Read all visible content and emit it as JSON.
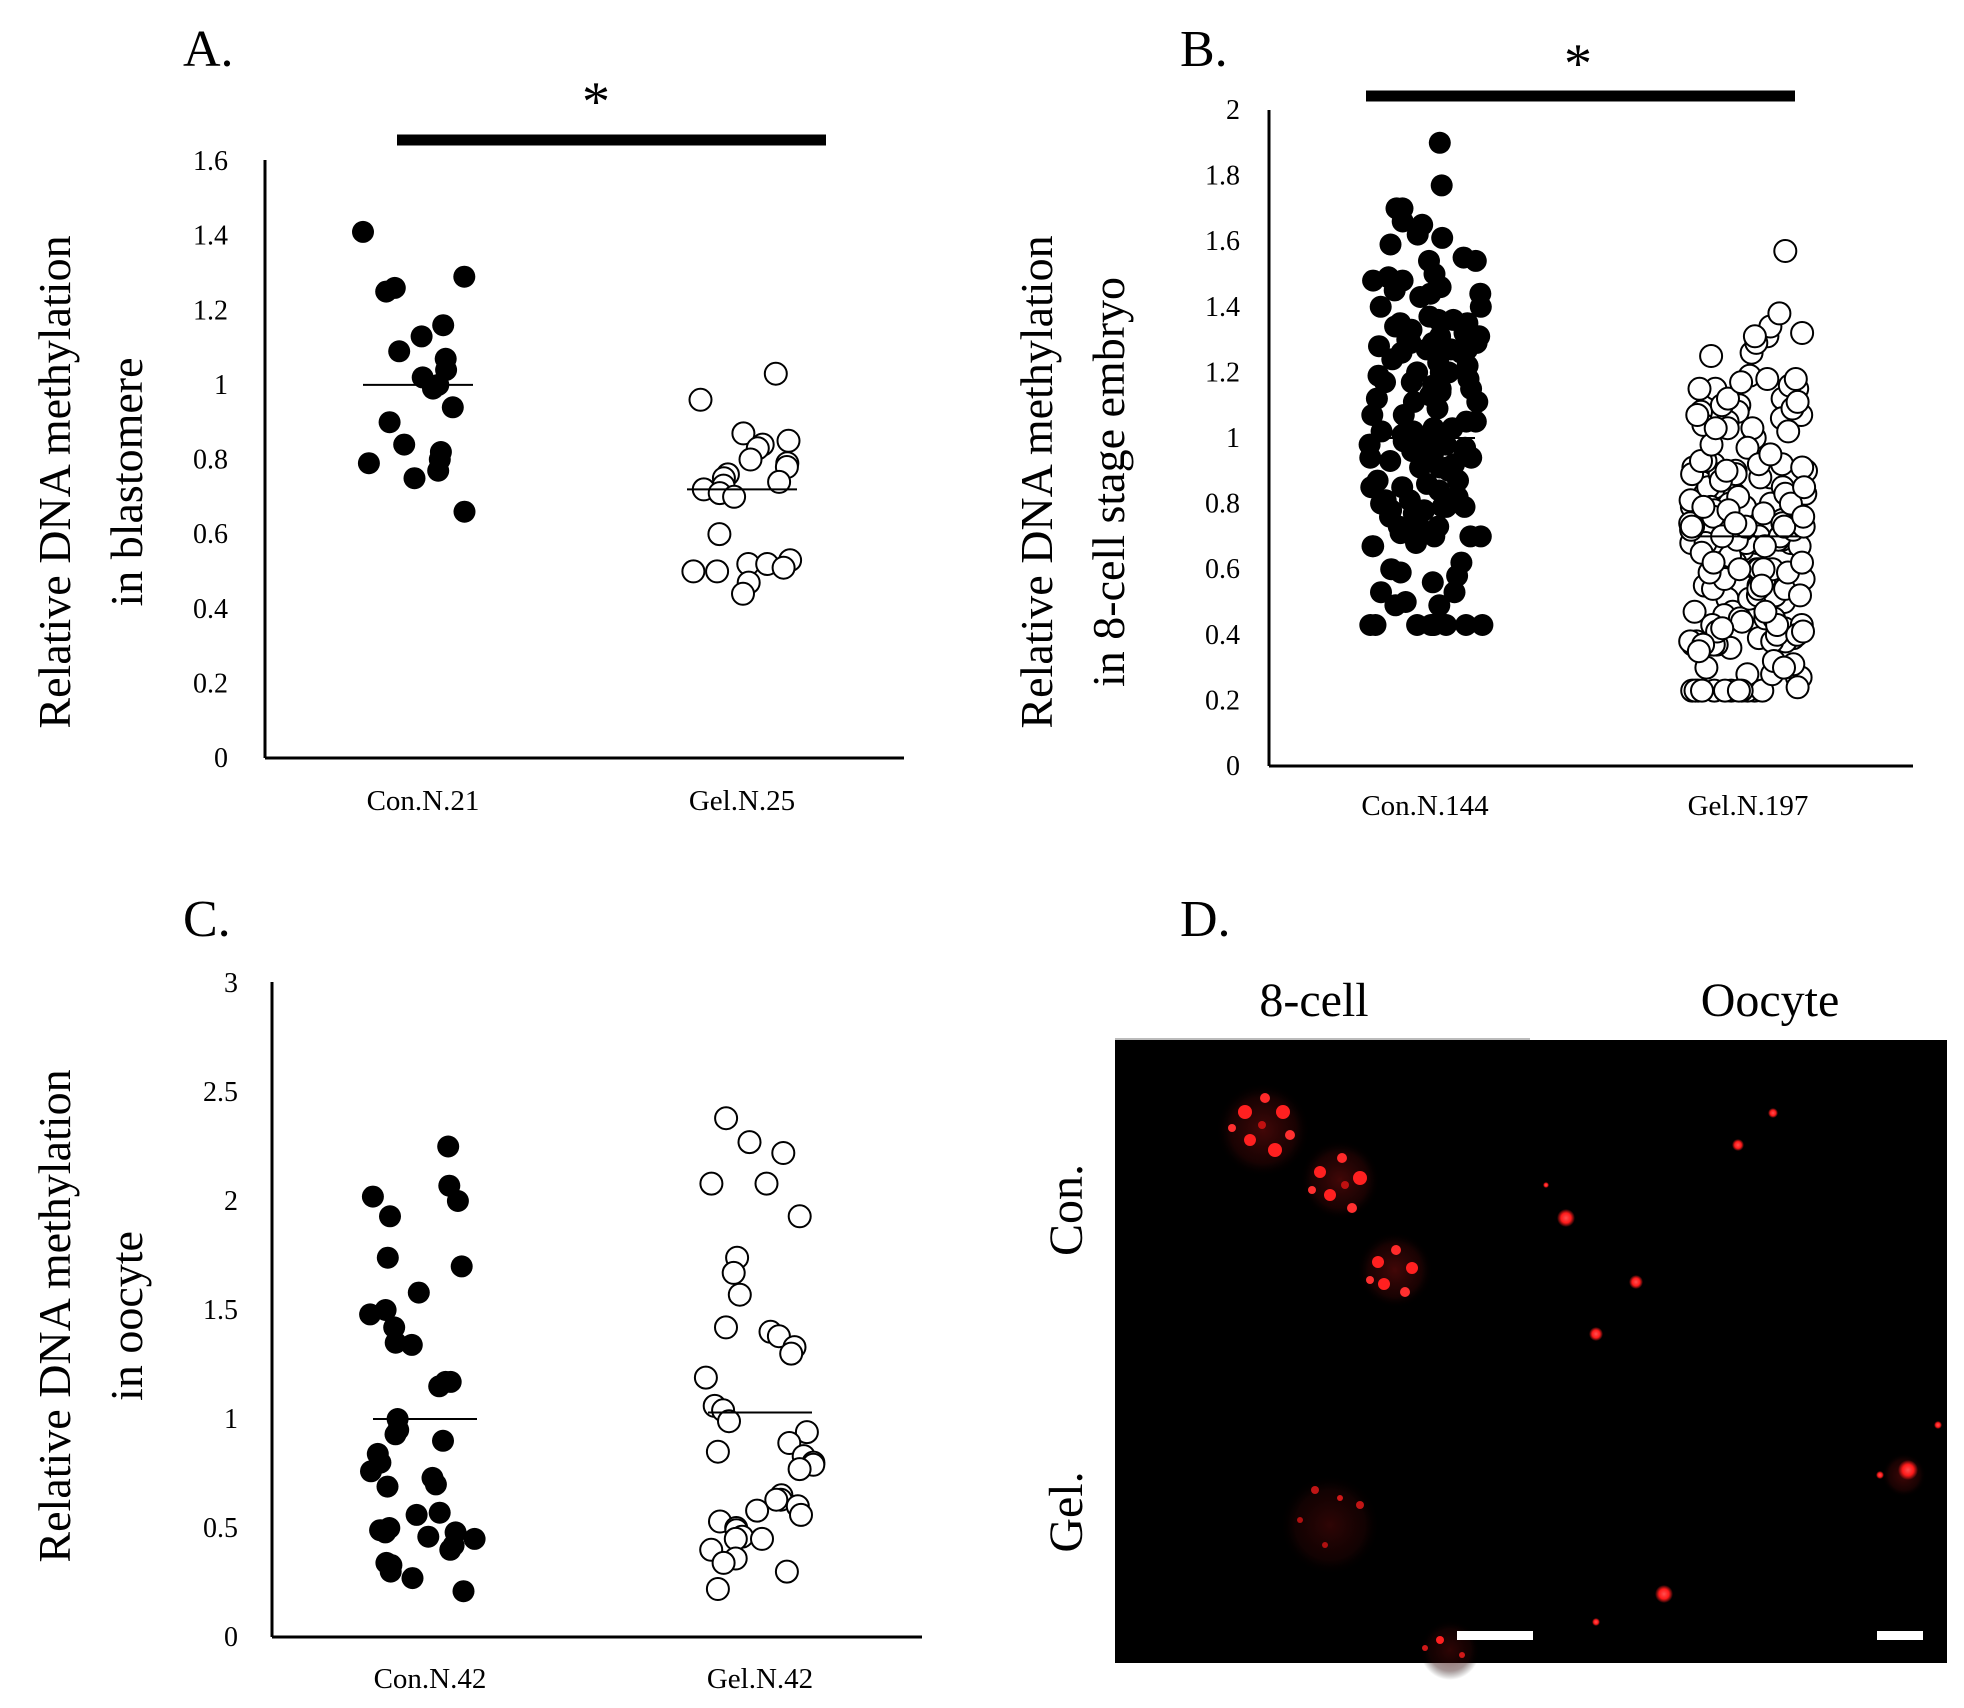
{
  "chart_data": [
    {
      "type": "scatter",
      "panel_label": "A.",
      "ylabel_line1": "Relative DNA methylation",
      "ylabel_line2": "in blastomere",
      "ylim": [
        0,
        1.6
      ],
      "yticks": [
        "0",
        "0.2",
        "0.4",
        "0.6",
        "0.8",
        "1",
        "1.2",
        "1.4",
        "1.6"
      ],
      "categories": [
        "Con.N.21",
        "Gel.N.25"
      ],
      "significance": "*",
      "series": [
        {
          "name": "Con.",
          "filled": true,
          "mean": 1.0,
          "n": 21,
          "values": [
            1.41,
            1.29,
            1.26,
            1.25,
            1.16,
            1.13,
            1.09,
            1.07,
            1.04,
            1.02,
            1.0,
            0.99,
            0.94,
            0.9,
            0.84,
            0.82,
            0.8,
            0.79,
            0.77,
            0.75,
            0.66
          ]
        },
        {
          "name": "Gel.",
          "filled": false,
          "mean": 0.72,
          "n": 25,
          "values": [
            1.03,
            0.96,
            0.87,
            0.85,
            0.84,
            0.83,
            0.8,
            0.79,
            0.78,
            0.76,
            0.75,
            0.74,
            0.73,
            0.72,
            0.71,
            0.7,
            0.6,
            0.53,
            0.52,
            0.52,
            0.51,
            0.5,
            0.5,
            0.47,
            0.44
          ]
        }
      ]
    },
    {
      "type": "scatter",
      "panel_label": "B.",
      "ylabel_line1": "Relative DNA methylation",
      "ylabel_line2": "in 8-cell stage embryo",
      "ylim": [
        0,
        2
      ],
      "yticks": [
        "0",
        "0.2",
        "0.4",
        "0.6",
        "0.8",
        "1",
        "1.2",
        "1.4",
        "1.6",
        "1.8",
        "2"
      ],
      "categories": [
        "Con.N.144",
        "Gel.N.197"
      ],
      "significance": "*",
      "series": [
        {
          "name": "Con.",
          "filled": true,
          "mean": 1.0,
          "n": 144,
          "range": [
            0.43,
            1.9
          ]
        },
        {
          "name": "Gel.",
          "filled": false,
          "mean": 0.7,
          "n": 197,
          "range": [
            0.23,
            1.57
          ]
        }
      ]
    },
    {
      "type": "scatter",
      "panel_label": "C.",
      "ylabel_line1": "Relative DNA methylation",
      "ylabel_line2": "in oocyte",
      "ylim": [
        0,
        3
      ],
      "yticks": [
        "0",
        "0.5",
        "1",
        "1.5",
        "2",
        "2.5",
        "3"
      ],
      "categories": [
        "Con.N.42",
        "Gel.N.42"
      ],
      "series": [
        {
          "name": "Con.",
          "filled": true,
          "mean": 1.0,
          "n": 42,
          "values": [
            2.25,
            2.07,
            2.02,
            2.0,
            1.93,
            1.74,
            1.7,
            1.58,
            1.5,
            1.48,
            1.42,
            1.35,
            1.34,
            1.17,
            1.17,
            1.15,
            1.0,
            0.95,
            0.93,
            0.9,
            0.84,
            0.8,
            0.76,
            0.73,
            0.7,
            0.69,
            0.57,
            0.56,
            0.5,
            0.49,
            0.48,
            0.48,
            0.46,
            0.45,
            0.42,
            0.4,
            0.34,
            0.33,
            0.32,
            0.3,
            0.27,
            0.21
          ]
        },
        {
          "name": "Gel.",
          "filled": false,
          "mean": 1.03,
          "n": 42,
          "values": [
            2.38,
            2.27,
            2.22,
            2.08,
            2.08,
            1.93,
            1.74,
            1.67,
            1.57,
            1.42,
            1.4,
            1.38,
            1.33,
            1.3,
            1.19,
            1.06,
            1.04,
            0.99,
            0.94,
            0.89,
            0.85,
            0.83,
            0.8,
            0.79,
            0.77,
            0.65,
            0.63,
            0.63,
            0.6,
            0.58,
            0.56,
            0.53,
            0.5,
            0.49,
            0.46,
            0.45,
            0.45,
            0.4,
            0.36,
            0.34,
            0.3,
            0.22
          ]
        }
      ]
    }
  ],
  "panel_d": {
    "panel_label": "D.",
    "column_labels": [
      "8-cell",
      "Oocyte"
    ],
    "row_labels": [
      "Con.",
      "Gel."
    ],
    "background": "#000000",
    "signal_color": "#ff1a1a"
  }
}
